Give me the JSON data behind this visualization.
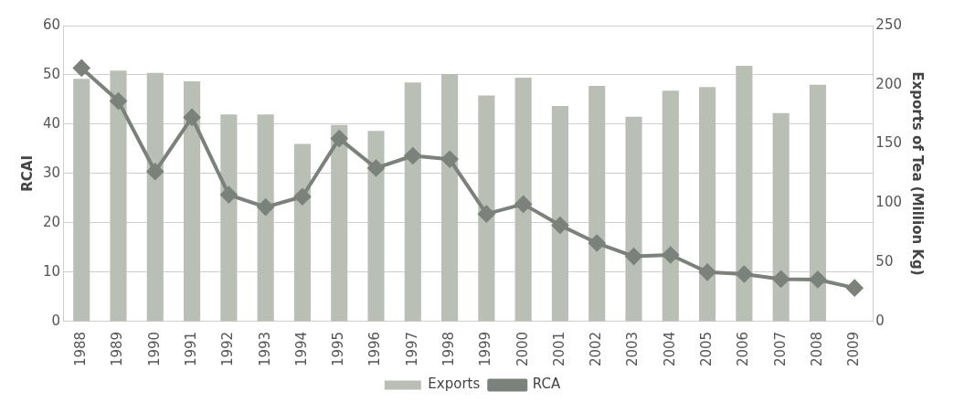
{
  "chart_data": {
    "type": "bar",
    "ylabel": "RCAI",
    "y2label": "Exports of Tea (Million Kg)",
    "categories": [
      "1988",
      "1989",
      "1990",
      "1991",
      "1992",
      "1993",
      "1994",
      "1995",
      "1996",
      "1997",
      "1998",
      "1999",
      "2000",
      "2001",
      "2002",
      "2003",
      "2004",
      "2005",
      "2006",
      "2007",
      "2008",
      "2009"
    ],
    "series": [
      {
        "name": "Exports",
        "axis": "y2",
        "color": "#b9bfb5",
        "values": [
          205,
          212,
          210,
          203,
          175,
          175,
          150,
          166,
          161,
          202,
          209,
          191,
          206,
          182,
          199,
          173,
          195,
          198,
          216,
          176,
          200,
          null
        ]
      },
      {
        "name": "RCA",
        "type": "line",
        "axis": "y",
        "color": "#7b817b",
        "marker": "diamond",
        "values": [
          51.4,
          44.7,
          30.4,
          41.4,
          25.7,
          23.2,
          25.3,
          37.1,
          31.1,
          33.6,
          32.9,
          21.8,
          23.8,
          19.5,
          15.9,
          13.2,
          13.5,
          10,
          9.6,
          8.6,
          8.5,
          6.8
        ]
      }
    ],
    "ylim": [
      0,
      60
    ],
    "yticks": [
      0,
      10,
      20,
      30,
      40,
      50,
      60
    ],
    "y2lim": [
      0,
      250
    ],
    "y2ticks": [
      0,
      50,
      100,
      150,
      200,
      250
    ],
    "grid": "y",
    "legend": "bottom"
  }
}
